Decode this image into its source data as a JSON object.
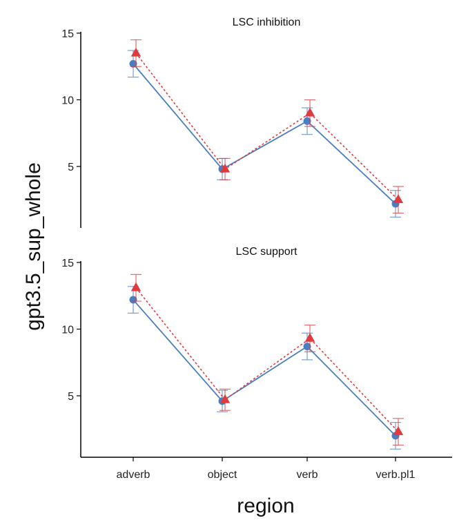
{
  "chart_data": {
    "type": "line",
    "xlabel": "region",
    "ylabel": "gpt3.5_sup_whole",
    "categories": [
      "adverb",
      "object",
      "verb",
      "verb.pl1"
    ],
    "yticks": [
      5,
      10,
      15
    ],
    "ylim": [
      0,
      15
    ],
    "grid": false,
    "legend": "none",
    "panels": [
      {
        "title": "LSC inhibition",
        "series": [
          {
            "color": "#4a7ec2",
            "marker": "circle",
            "line": "solid",
            "values": [
              12.7,
              4.8,
              8.4,
              2.2
            ],
            "err": [
              1.0,
              0.8,
              1.0,
              1.0
            ]
          },
          {
            "color": "#e0393e",
            "marker": "triangle",
            "line": "dotted",
            "values": [
              13.5,
              4.8,
              9.0,
              2.5
            ],
            "err": [
              1.0,
              0.8,
              1.0,
              1.0
            ]
          }
        ]
      },
      {
        "title": "LSC support",
        "series": [
          {
            "color": "#4a7ec2",
            "marker": "circle",
            "line": "solid",
            "values": [
              12.2,
              4.6,
              8.7,
              2.0
            ],
            "err": [
              1.0,
              0.8,
              1.0,
              1.0
            ]
          },
          {
            "color": "#e0393e",
            "marker": "triangle",
            "line": "dotted",
            "values": [
              13.1,
              4.7,
              9.3,
              2.3
            ],
            "err": [
              1.0,
              0.8,
              1.0,
              1.0
            ]
          }
        ]
      }
    ]
  }
}
